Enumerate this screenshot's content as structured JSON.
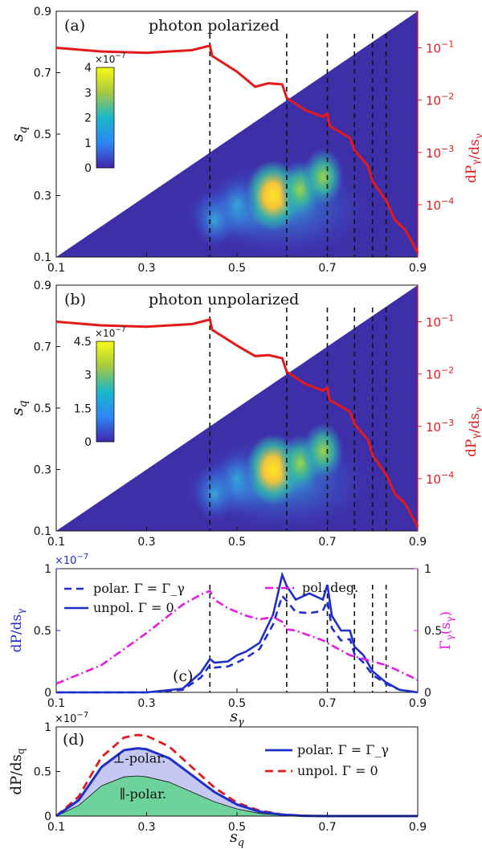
{
  "chart_data": [
    {
      "panel": "(a)",
      "type": "heatmap",
      "title": "photon polarized",
      "xlabel": "",
      "ylabel": "s_q",
      "y2label": "dP_γ/ds_γ",
      "xlim": [
        0.1,
        0.9
      ],
      "ylim": [
        0.1,
        0.9
      ],
      "x_ticks": [
        "0.1",
        "0.3",
        "0.5",
        "0.7",
        "0.9"
      ],
      "y_ticks": [
        "0.1",
        "0.3",
        "0.5",
        "0.7",
        "0.9"
      ],
      "y2_ticks": [
        "10^-1",
        "10^-2",
        "10^-3",
        "10^-4"
      ],
      "y2_scale": "log",
      "y2lim": [
        1e-05,
        0.5
      ],
      "colorbar": {
        "scale": "×10^-7",
        "ticks": [
          "0",
          "1",
          "2",
          "3",
          "4"
        ],
        "range": [
          0,
          4
        ]
      },
      "vlines": [
        0.44,
        0.61,
        0.7,
        0.76,
        0.8,
        0.83
      ],
      "hotspots": [
        {
          "x": 0.58,
          "y": 0.3,
          "value": 4.0
        },
        {
          "x": 0.64,
          "y": 0.32,
          "value": 3.0
        },
        {
          "x": 0.69,
          "y": 0.36,
          "value": 2.5
        },
        {
          "x": 0.5,
          "y": 0.27,
          "value": 2.0
        },
        {
          "x": 0.45,
          "y": 0.22,
          "value": 1.4
        }
      ],
      "series": [
        {
          "color": "#e31a1c",
          "x": [
            0.1,
            0.2,
            0.3,
            0.4,
            0.44,
            0.445,
            0.5,
            0.54,
            0.57,
            0.6,
            0.61,
            0.65,
            0.69,
            0.7,
            0.705,
            0.75,
            0.76,
            0.79,
            0.8,
            0.83,
            0.85,
            0.87,
            0.88,
            0.9
          ],
          "y": [
            0.1,
            0.085,
            0.08,
            0.09,
            0.11,
            0.07,
            0.035,
            0.018,
            0.021,
            0.02,
            0.011,
            0.0065,
            0.0048,
            0.0055,
            0.0032,
            0.0019,
            0.0011,
            0.00055,
            0.00028,
            0.00012,
            5e-05,
            3.5e-05,
            2.5e-05,
            1.2e-05
          ]
        }
      ]
    },
    {
      "panel": "(b)",
      "type": "heatmap",
      "title": "photon unpolarized",
      "xlabel": "",
      "ylabel": "s_q",
      "y2label": "dP_γ/ds_γ",
      "xlim": [
        0.1,
        0.9
      ],
      "ylim": [
        0.1,
        0.9
      ],
      "x_ticks": [
        "0.1",
        "0.3",
        "0.5",
        "0.7",
        "0.9"
      ],
      "y_ticks": [
        "0.1",
        "0.3",
        "0.5",
        "0.7",
        "0.9"
      ],
      "y2_ticks": [
        "10^-1",
        "10^-2",
        "10^-3",
        "10^-4"
      ],
      "y2_scale": "log",
      "y2lim": [
        1e-05,
        0.5
      ],
      "colorbar": {
        "scale": "×10^-7",
        "ticks": [
          "0",
          "1.5",
          "3",
          "4.5"
        ],
        "range": [
          0,
          4.5
        ]
      },
      "vlines": [
        0.44,
        0.61,
        0.7,
        0.76,
        0.8,
        0.83
      ],
      "hotspots": [
        {
          "x": 0.58,
          "y": 0.3,
          "value": 4.5
        },
        {
          "x": 0.64,
          "y": 0.32,
          "value": 3.4
        },
        {
          "x": 0.69,
          "y": 0.36,
          "value": 2.8
        },
        {
          "x": 0.5,
          "y": 0.27,
          "value": 2.2
        },
        {
          "x": 0.45,
          "y": 0.22,
          "value": 1.6
        }
      ],
      "series": [
        {
          "color": "#e31a1c",
          "x": [
            0.1,
            0.2,
            0.3,
            0.4,
            0.44,
            0.445,
            0.5,
            0.54,
            0.57,
            0.6,
            0.61,
            0.65,
            0.69,
            0.7,
            0.705,
            0.75,
            0.76,
            0.79,
            0.8,
            0.83,
            0.85,
            0.87,
            0.88,
            0.9
          ],
          "y": [
            0.1,
            0.085,
            0.08,
            0.09,
            0.11,
            0.07,
            0.035,
            0.022,
            0.023,
            0.02,
            0.011,
            0.0065,
            0.0048,
            0.0055,
            0.0032,
            0.0019,
            0.0011,
            0.00055,
            0.00028,
            0.00012,
            5e-05,
            3.5e-05,
            2.5e-05,
            1.2e-05
          ]
        }
      ]
    },
    {
      "panel": "(c)",
      "type": "line",
      "xlabel": "s_γ",
      "ylabel": "dP/ds_γ",
      "y2label": "Γ_γ(s_γ)",
      "xlim": [
        0.1,
        0.9
      ],
      "ylim": [
        0,
        1.0
      ],
      "y2lim": [
        0,
        1.0
      ],
      "y_scale": "×10^-7",
      "x_ticks": [
        "0.1",
        "0.3",
        "0.5",
        "0.7",
        "0.9"
      ],
      "y_ticks": [
        "0",
        "0.5",
        "1"
      ],
      "y2_ticks": [
        "0",
        "0.5",
        "1"
      ],
      "legend": [
        {
          "label": "polar. Γ = Γ_γ",
          "style": "dashed",
          "color": "#1f2ec8"
        },
        {
          "label": "unpol. Γ = 0",
          "style": "solid",
          "color": "#1f2ec8"
        },
        {
          "label": "pol. deg.",
          "style": "dashdot",
          "color": "#e619e6"
        }
      ],
      "vlines": [
        0.44,
        0.61,
        0.7,
        0.76,
        0.8,
        0.83
      ],
      "x": [
        0.1,
        0.2,
        0.3,
        0.38,
        0.42,
        0.44,
        0.45,
        0.48,
        0.5,
        0.52,
        0.55,
        0.58,
        0.6,
        0.61,
        0.63,
        0.66,
        0.69,
        0.7,
        0.71,
        0.73,
        0.75,
        0.76,
        0.78,
        0.8,
        0.83,
        0.86,
        0.9
      ],
      "series": [
        {
          "name": "polar. Γ = Γ_γ",
          "axis": "left",
          "y": [
            0,
            0.0,
            0.0,
            0.02,
            0.12,
            0.22,
            0.2,
            0.21,
            0.24,
            0.28,
            0.35,
            0.55,
            0.78,
            0.74,
            0.65,
            0.64,
            0.66,
            0.74,
            0.52,
            0.42,
            0.43,
            0.31,
            0.24,
            0.14,
            0.07,
            0.02,
            0.0
          ]
        },
        {
          "name": "unpol. Γ = 0",
          "axis": "left",
          "y": [
            0,
            0.0,
            0.0,
            0.03,
            0.16,
            0.27,
            0.24,
            0.25,
            0.3,
            0.33,
            0.4,
            0.63,
            0.95,
            0.86,
            0.75,
            0.8,
            0.75,
            0.87,
            0.62,
            0.5,
            0.5,
            0.37,
            0.3,
            0.17,
            0.08,
            0.02,
            0.0
          ]
        },
        {
          "name": "pol. deg.",
          "axis": "right",
          "y": [
            0.07,
            0.22,
            0.48,
            0.71,
            0.79,
            0.82,
            0.75,
            0.68,
            0.65,
            0.62,
            0.59,
            0.61,
            0.57,
            0.51,
            0.5,
            0.46,
            0.42,
            0.4,
            0.38,
            0.34,
            0.3,
            0.29,
            0.27,
            0.25,
            0.22,
            0.17,
            0.1
          ]
        }
      ]
    },
    {
      "panel": "(d)",
      "type": "area",
      "xlabel": "s_q",
      "ylabel": "dP/ds_q",
      "xlim": [
        0.1,
        0.9
      ],
      "ylim": [
        0,
        1.0
      ],
      "y_scale": "×10^-7",
      "x_ticks": [
        "0.1",
        "0.3",
        "0.5",
        "0.7",
        "0.9"
      ],
      "y_ticks": [
        "0",
        "0.5",
        "1"
      ],
      "legend": [
        {
          "label": "polar. Γ = Γ_γ",
          "style": "solid",
          "color": "#1f2ec8"
        },
        {
          "label": "unpol. Γ = 0",
          "style": "dashed",
          "color": "#e31a1c"
        }
      ],
      "annotations": [
        "⊥-polar.",
        "∥-polar."
      ],
      "x": [
        0.1,
        0.15,
        0.2,
        0.25,
        0.28,
        0.3,
        0.35,
        0.4,
        0.45,
        0.5,
        0.55,
        0.6,
        0.65,
        0.7,
        0.9
      ],
      "series": [
        {
          "name": "polar. Γ = Γ_γ",
          "y": [
            0.0,
            0.18,
            0.55,
            0.74,
            0.76,
            0.75,
            0.65,
            0.46,
            0.27,
            0.13,
            0.05,
            0.015,
            0.003,
            0.0,
            0.0
          ]
        },
        {
          "name": "unpol. Γ = 0",
          "y": [
            0.0,
            0.22,
            0.66,
            0.88,
            0.91,
            0.9,
            0.78,
            0.55,
            0.32,
            0.15,
            0.06,
            0.018,
            0.004,
            0.0,
            0.0
          ]
        },
        {
          "name": "∥-polar.",
          "y": [
            0.0,
            0.12,
            0.34,
            0.44,
            0.45,
            0.44,
            0.38,
            0.27,
            0.16,
            0.08,
            0.03,
            0.009,
            0.002,
            0.0,
            0.0
          ]
        }
      ]
    }
  ]
}
